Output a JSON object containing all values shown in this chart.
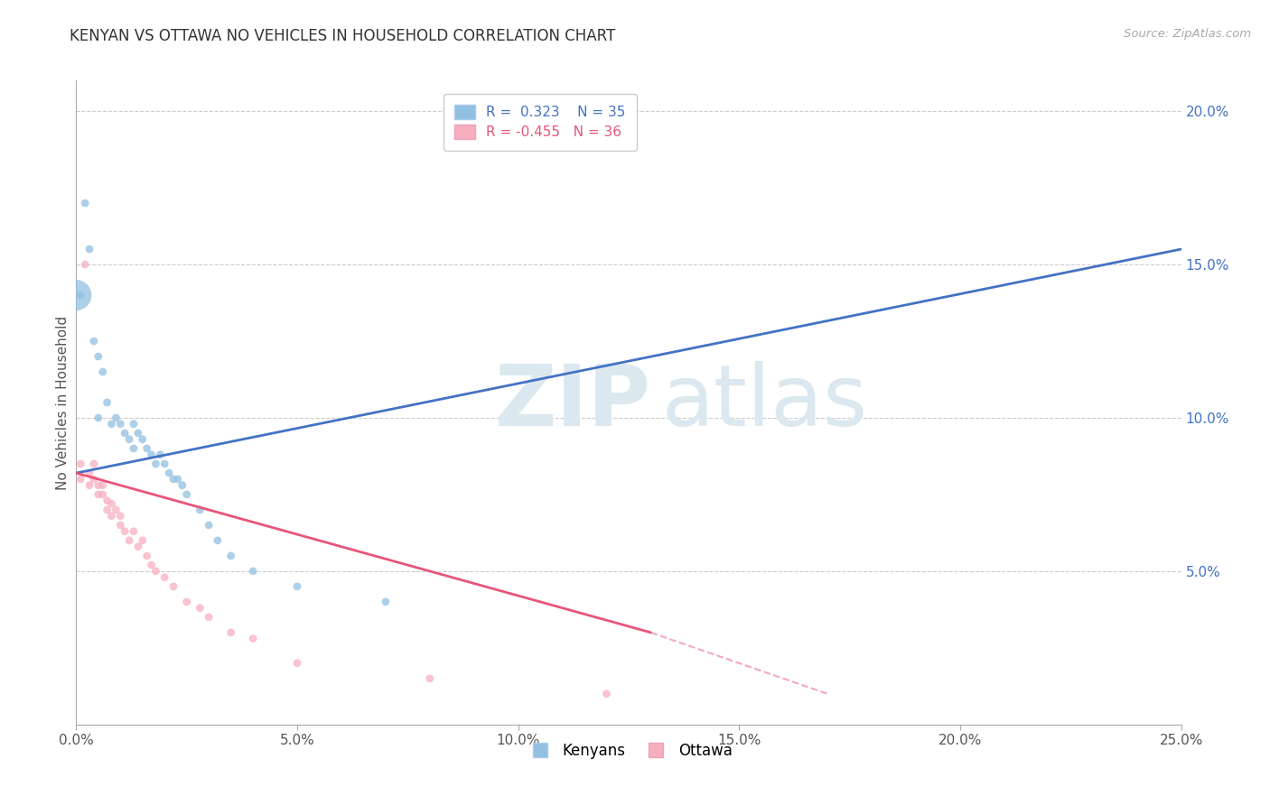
{
  "title": "KENYAN VS OTTAWA NO VEHICLES IN HOUSEHOLD CORRELATION CHART",
  "source": "Source: ZipAtlas.com",
  "ylabel": "No Vehicles in Household",
  "xlim": [
    0.0,
    0.25
  ],
  "ylim": [
    0.0,
    0.21
  ],
  "x_ticks": [
    0.0,
    0.05,
    0.1,
    0.15,
    0.2,
    0.25
  ],
  "x_tick_labels": [
    "0.0%",
    "5.0%",
    "10.0%",
    "15.0%",
    "20.0%",
    "25.0%"
  ],
  "y_ticks_right": [
    0.05,
    0.1,
    0.15,
    0.2
  ],
  "y_tick_labels_right": [
    "5.0%",
    "10.0%",
    "15.0%",
    "20.0%"
  ],
  "kenyan_r": 0.323,
  "kenyan_n": 35,
  "ottawa_r": -0.455,
  "ottawa_n": 36,
  "kenyan_color": "#92c0e0",
  "ottawa_color": "#f7afc0",
  "kenyan_line_color": "#4472c4",
  "ottawa_line_color": "#e8557a",
  "kenyan_scatter": [
    [
      0.001,
      0.14
    ],
    [
      0.002,
      0.17
    ],
    [
      0.003,
      0.155
    ],
    [
      0.004,
      0.125
    ],
    [
      0.005,
      0.12
    ],
    [
      0.005,
      0.1
    ],
    [
      0.006,
      0.115
    ],
    [
      0.007,
      0.105
    ],
    [
      0.008,
      0.098
    ],
    [
      0.009,
      0.1
    ],
    [
      0.01,
      0.098
    ],
    [
      0.011,
      0.095
    ],
    [
      0.012,
      0.093
    ],
    [
      0.013,
      0.09
    ],
    [
      0.013,
      0.098
    ],
    [
      0.014,
      0.095
    ],
    [
      0.015,
      0.093
    ],
    [
      0.016,
      0.09
    ],
    [
      0.017,
      0.088
    ],
    [
      0.018,
      0.085
    ],
    [
      0.019,
      0.088
    ],
    [
      0.02,
      0.085
    ],
    [
      0.021,
      0.082
    ],
    [
      0.022,
      0.08
    ],
    [
      0.023,
      0.08
    ],
    [
      0.024,
      0.078
    ],
    [
      0.025,
      0.075
    ],
    [
      0.028,
      0.07
    ],
    [
      0.03,
      0.065
    ],
    [
      0.032,
      0.06
    ],
    [
      0.035,
      0.055
    ],
    [
      0.04,
      0.05
    ],
    [
      0.05,
      0.045
    ],
    [
      0.07,
      0.04
    ],
    [
      0.0,
      0.14
    ]
  ],
  "kenyan_sizes": [
    40,
    40,
    40,
    40,
    40,
    40,
    40,
    40,
    40,
    40,
    40,
    40,
    40,
    40,
    40,
    40,
    40,
    40,
    40,
    40,
    40,
    40,
    40,
    40,
    40,
    40,
    40,
    40,
    40,
    40,
    40,
    40,
    40,
    40,
    600
  ],
  "ottawa_scatter": [
    [
      0.001,
      0.085
    ],
    [
      0.001,
      0.08
    ],
    [
      0.002,
      0.15
    ],
    [
      0.003,
      0.082
    ],
    [
      0.003,
      0.078
    ],
    [
      0.004,
      0.085
    ],
    [
      0.004,
      0.08
    ],
    [
      0.005,
      0.078
    ],
    [
      0.005,
      0.075
    ],
    [
      0.006,
      0.078
    ],
    [
      0.006,
      0.075
    ],
    [
      0.007,
      0.073
    ],
    [
      0.007,
      0.07
    ],
    [
      0.008,
      0.072
    ],
    [
      0.008,
      0.068
    ],
    [
      0.009,
      0.07
    ],
    [
      0.01,
      0.068
    ],
    [
      0.01,
      0.065
    ],
    [
      0.011,
      0.063
    ],
    [
      0.012,
      0.06
    ],
    [
      0.013,
      0.063
    ],
    [
      0.014,
      0.058
    ],
    [
      0.015,
      0.06
    ],
    [
      0.016,
      0.055
    ],
    [
      0.017,
      0.052
    ],
    [
      0.018,
      0.05
    ],
    [
      0.02,
      0.048
    ],
    [
      0.022,
      0.045
    ],
    [
      0.025,
      0.04
    ],
    [
      0.028,
      0.038
    ],
    [
      0.03,
      0.035
    ],
    [
      0.035,
      0.03
    ],
    [
      0.04,
      0.028
    ],
    [
      0.05,
      0.02
    ],
    [
      0.08,
      0.015
    ],
    [
      0.12,
      0.01
    ]
  ],
  "ottawa_sizes": [
    40,
    40,
    40,
    40,
    40,
    40,
    40,
    40,
    40,
    40,
    40,
    40,
    40,
    40,
    40,
    40,
    40,
    40,
    40,
    40,
    40,
    40,
    40,
    40,
    40,
    40,
    40,
    40,
    40,
    40,
    40,
    40,
    40,
    40,
    40,
    40
  ],
  "watermark_zip": "ZIP",
  "watermark_atlas": "atlas",
  "background_color": "#ffffff",
  "grid_color": "#cccccc"
}
